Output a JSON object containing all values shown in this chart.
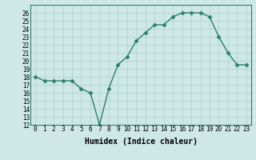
{
  "x": [
    0,
    1,
    2,
    3,
    4,
    5,
    6,
    7,
    8,
    9,
    10,
    11,
    12,
    13,
    14,
    15,
    16,
    17,
    18,
    19,
    20,
    21,
    22,
    23
  ],
  "y": [
    18,
    17.5,
    17.5,
    17.5,
    17.5,
    16.5,
    16,
    12,
    16.5,
    19.5,
    20.5,
    22.5,
    23.5,
    24.5,
    24.5,
    25.5,
    26,
    26,
    26,
    25.5,
    23,
    21,
    19.5,
    19.5
  ],
  "line_color": "#2d7f6e",
  "marker": "D",
  "marker_color": "#2d7f6e",
  "bg_color": "#cde8e5",
  "grid_color": "#b0d0cc",
  "xlabel": "Humidex (Indice chaleur)",
  "ylabel": "",
  "xlim": [
    -0.5,
    23.5
  ],
  "ylim": [
    12,
    27
  ],
  "yticks": [
    12,
    13,
    14,
    15,
    16,
    17,
    18,
    19,
    20,
    21,
    22,
    23,
    24,
    25,
    26
  ],
  "xticks": [
    0,
    1,
    2,
    3,
    4,
    5,
    6,
    7,
    8,
    9,
    10,
    11,
    12,
    13,
    14,
    15,
    16,
    17,
    18,
    19,
    20,
    21,
    22,
    23
  ],
  "tick_fontsize": 5.5,
  "xlabel_fontsize": 7,
  "line_width": 1.0,
  "marker_size": 2.5
}
